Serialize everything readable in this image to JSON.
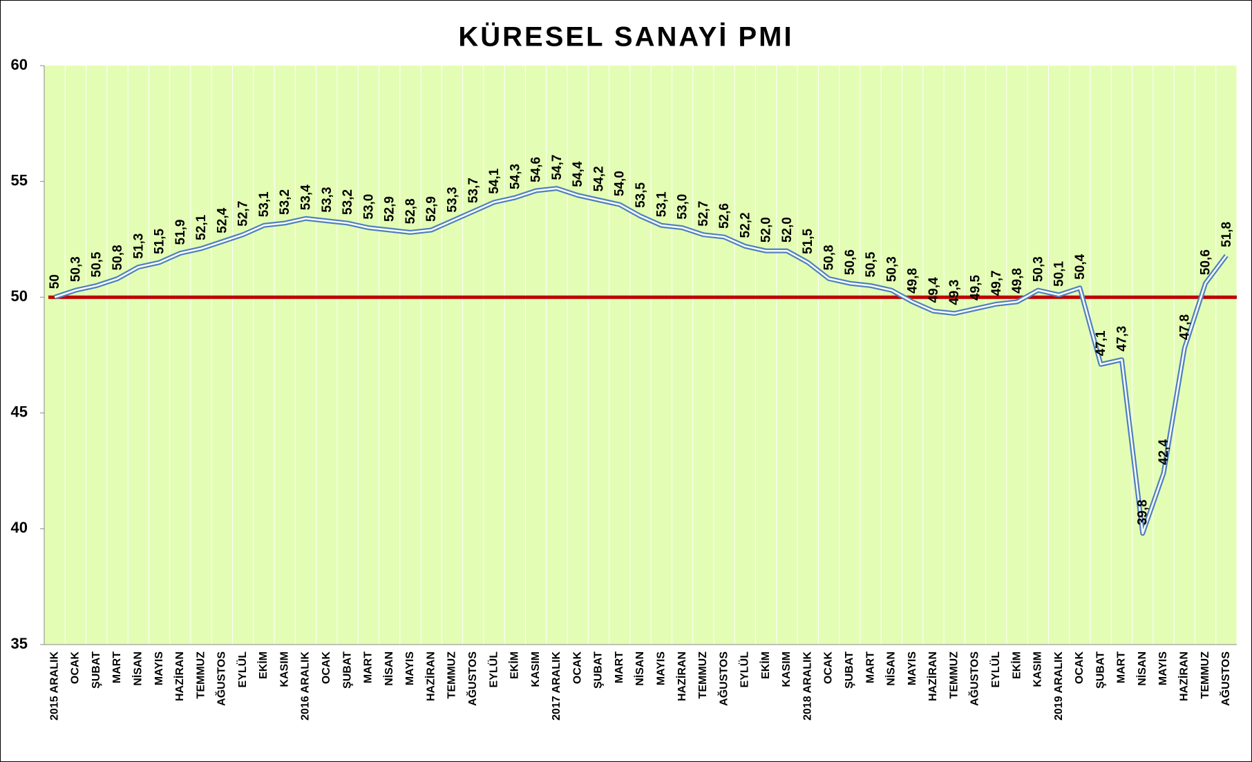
{
  "chart_data": {
    "type": "line",
    "title": "KÜRESEL SANAYİ PMI",
    "categories": [
      "2015 ARALIK",
      "OCAK",
      "ŞUBAT",
      "MART",
      "NİSAN",
      "MAYIS",
      "HAZİRAN",
      "TEMMUZ",
      "AĞUSTOS",
      "EYLÜL",
      "EKİM",
      "KASIM",
      "2016 ARALIK",
      "OCAK",
      "ŞUBAT",
      "MART",
      "NİSAN",
      "MAYIS",
      "HAZİRAN",
      "TEMMUZ",
      "AĞUSTOS",
      "EYLÜL",
      "EKİM",
      "KASIM",
      "2017 ARALIK",
      "OCAK",
      "ŞUBAT",
      "MART",
      "NİSAN",
      "MAYIS",
      "HAZİRAN",
      "TEMMUZ",
      "AĞUSTOS",
      "EYLÜL",
      "EKİM",
      "KASIM",
      "2018 ARALIK",
      "OCAK",
      "ŞUBAT",
      "MART",
      "NİSAN",
      "MAYIS",
      "HAZİRAN",
      "TEMMUZ",
      "AĞUSTOS",
      "EYLÜL",
      "EKİM",
      "KASIM",
      "2019 ARALIK",
      "OCAK",
      "ŞUBAT",
      "MART",
      "NİSAN",
      "MAYIS",
      "HAZİRAN",
      "TEMMUZ",
      "AĞUSTOS"
    ],
    "values": [
      50,
      50.3,
      50.5,
      50.8,
      51.3,
      51.5,
      51.9,
      52.1,
      52.4,
      52.7,
      53.1,
      53.2,
      53.4,
      53.3,
      53.2,
      53.0,
      52.9,
      52.8,
      52.9,
      53.3,
      53.7,
      54.1,
      54.3,
      54.6,
      54.7,
      54.4,
      54.2,
      54.0,
      53.5,
      53.1,
      53.0,
      52.7,
      52.6,
      52.2,
      52.0,
      52.0,
      51.5,
      50.8,
      50.6,
      50.5,
      50.3,
      49.8,
      49.4,
      49.3,
      49.5,
      49.7,
      49.8,
      50.3,
      50.1,
      50.4,
      47.1,
      47.3,
      39.8,
      42.4,
      47.8,
      50.6,
      51.8
    ],
    "value_labels": [
      "50",
      "50,3",
      "50,5",
      "50,8",
      "51,3",
      "51,5",
      "51,9",
      "52,1",
      "52,4",
      "52,7",
      "53,1",
      "53,2",
      "53,4",
      "53,3",
      "53,2",
      "53,0",
      "52,9",
      "52,8",
      "52,9",
      "53,3",
      "53,7",
      "54,1",
      "54,3",
      "54,6",
      "54,7",
      "54,4",
      "54,2",
      "54,0",
      "53,5",
      "53,1",
      "53,0",
      "52,7",
      "52,6",
      "52,2",
      "52,0",
      "52,0",
      "51,5",
      "50,8",
      "50,6",
      "50,5",
      "50,3",
      "49,8",
      "49,4",
      "49,3",
      "49,5",
      "49,7",
      "49,8",
      "50,3",
      "50,1",
      "50,4",
      "47,1",
      "47,3",
      "39,8",
      "42,4",
      "47,8",
      "50,6",
      "51,8"
    ],
    "color": "#4f81bd",
    "ylim": [
      35,
      60
    ],
    "yticks": [
      35,
      40,
      45,
      50,
      55,
      60
    ],
    "grid": true,
    "reference_line": {
      "value": 50,
      "color": "#c00000"
    }
  }
}
